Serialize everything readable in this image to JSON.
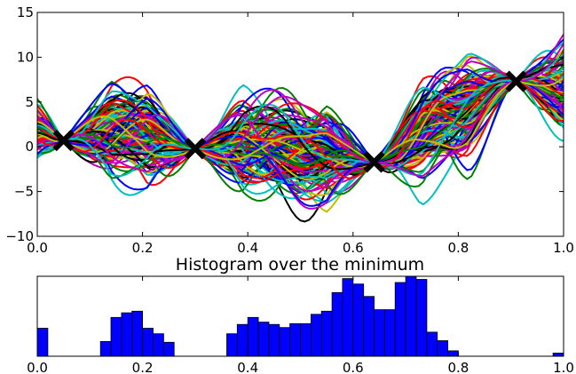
{
  "chart_data": [
    {
      "type": "line",
      "title": "",
      "xlabel": "",
      "ylabel": "",
      "xlim": [
        0.0,
        1.0
      ],
      "ylim": [
        -10,
        15
      ],
      "x_ticks": [
        "0.0",
        "0.2",
        "0.4",
        "0.6",
        "0.8",
        "1.0"
      ],
      "y_ticks": [
        "15",
        "10",
        "5",
        "0",
        "−5",
        "−10"
      ],
      "grid": false,
      "legend": "none",
      "description_series": "many random sample curves drawn through fixed points",
      "observed_points": [
        {
          "x": 0.05,
          "y": 0.7
        },
        {
          "x": 0.3,
          "y": -0.2
        },
        {
          "x": 0.64,
          "y": -1.7
        },
        {
          "x": 0.91,
          "y": 7.3
        }
      ],
      "sample_mean_points": [
        {
          "x": 0.0,
          "y": 1.5
        },
        {
          "x": 0.05,
          "y": 0.7
        },
        {
          "x": 0.18,
          "y": 2.0
        },
        {
          "x": 0.3,
          "y": -0.2
        },
        {
          "x": 0.45,
          "y": 0.0
        },
        {
          "x": 0.52,
          "y": -1.0
        },
        {
          "x": 0.64,
          "y": -1.7
        },
        {
          "x": 0.78,
          "y": 3.5
        },
        {
          "x": 0.91,
          "y": 7.3
        },
        {
          "x": 1.0,
          "y": 6.0
        }
      ],
      "colors": [
        "#0000ff",
        "#008000",
        "#ff0000",
        "#00bfbf",
        "#bf00bf",
        "#bfbf00",
        "#000000"
      ]
    },
    {
      "type": "bar",
      "title": "Histogram over the minimum",
      "xlabel": "",
      "ylabel": "",
      "xlim": [
        0.0,
        1.0
      ],
      "x_ticks": [
        "0.0",
        "0.2",
        "0.4",
        "0.6",
        "0.8",
        "1.0"
      ],
      "bin_width": 0.02,
      "bin_starts": [
        0.0,
        0.12,
        0.14,
        0.16,
        0.18,
        0.2,
        0.22,
        0.24,
        0.36,
        0.38,
        0.4,
        0.42,
        0.44,
        0.46,
        0.48,
        0.5,
        0.52,
        0.54,
        0.56,
        0.58,
        0.6,
        0.62,
        0.64,
        0.66,
        0.68,
        0.7,
        0.72,
        0.74,
        0.76,
        0.78,
        0.98
      ],
      "values": [
        0.36,
        0.19,
        0.5,
        0.56,
        0.58,
        0.36,
        0.29,
        0.18,
        0.29,
        0.41,
        0.5,
        0.44,
        0.41,
        0.37,
        0.42,
        0.42,
        0.54,
        0.58,
        0.82,
        1.0,
        0.93,
        0.77,
        0.6,
        0.6,
        0.95,
        1.03,
        0.99,
        0.31,
        0.2,
        0.07,
        0.04
      ],
      "color": "#0000ff"
    }
  ]
}
